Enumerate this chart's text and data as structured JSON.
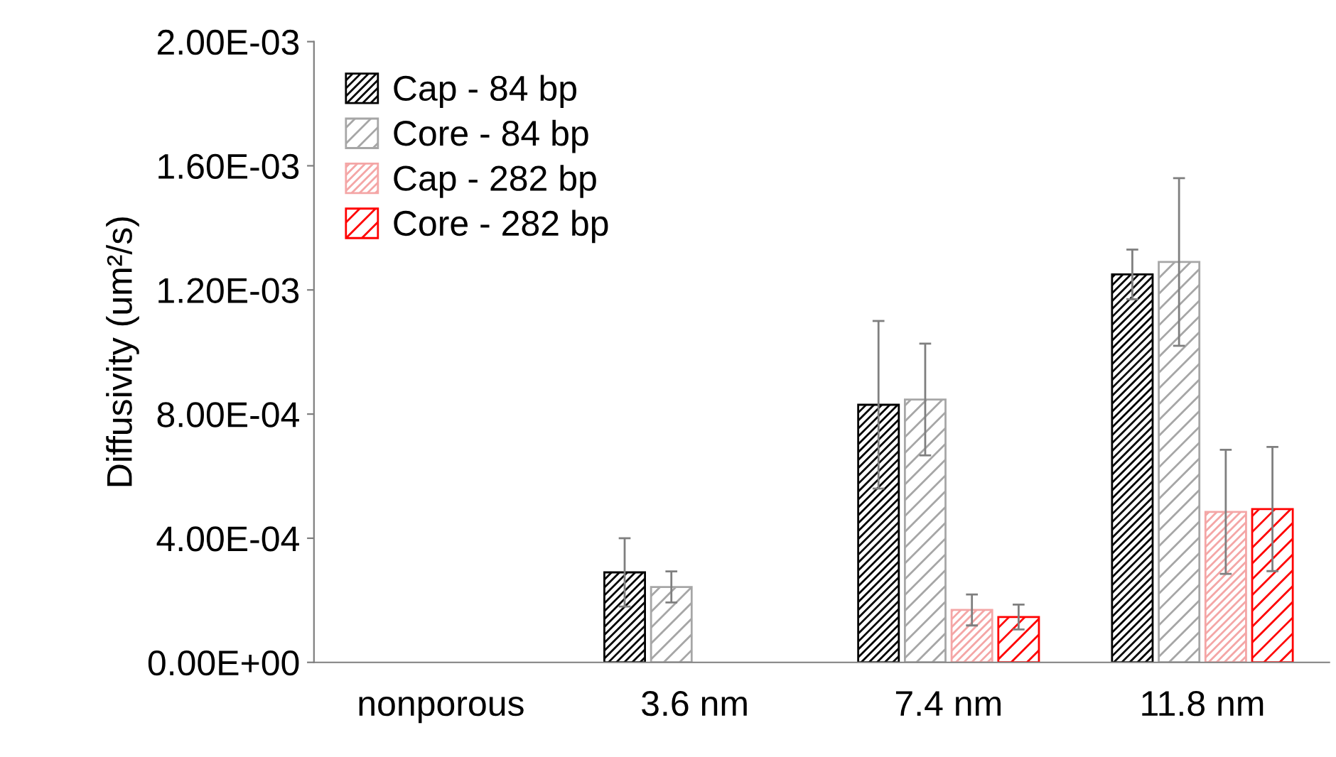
{
  "chart_data": {
    "type": "bar",
    "ylabel": "Diffusivity (um²/s)",
    "categories": [
      "nonporous",
      "3.6 nm",
      "7.4 nm",
      "11.8 nm"
    ],
    "series": [
      {
        "name": "Cap - 84 bp",
        "color": "#000000",
        "values": [
          null,
          0.00029,
          0.00083,
          0.00125
        ],
        "errors": [
          null,
          0.00011,
          0.00027,
          8e-05
        ]
      },
      {
        "name": "Core - 84 bp",
        "color": "#a6a6a6",
        "values": [
          null,
          0.000243,
          0.000847,
          0.00129
        ],
        "errors": [
          null,
          5e-05,
          0.00018,
          0.00027
        ]
      },
      {
        "name": "Cap - 282 bp",
        "color": "#f4a6a6",
        "values": [
          null,
          null,
          0.000169,
          0.000485
        ],
        "errors": [
          null,
          null,
          5e-05,
          0.0002
        ]
      },
      {
        "name": "Core - 282 bp",
        "color": "#ff0000",
        "values": [
          null,
          null,
          0.000146,
          0.000494
        ],
        "errors": [
          null,
          null,
          4e-05,
          0.0002
        ]
      }
    ],
    "ylim": [
      0,
      0.002
    ],
    "yticks": [
      {
        "value": 0,
        "label": "0.00E+00"
      },
      {
        "value": 0.0004,
        "label": "4.00E-04"
      },
      {
        "value": 0.0008,
        "label": "8.00E-04"
      },
      {
        "value": 0.0012,
        "label": "1.20E-03"
      },
      {
        "value": 0.0016,
        "label": "1.60E-03"
      },
      {
        "value": 0.002,
        "label": "2.00E-03"
      }
    ],
    "grid": false,
    "legend": "top left"
  }
}
